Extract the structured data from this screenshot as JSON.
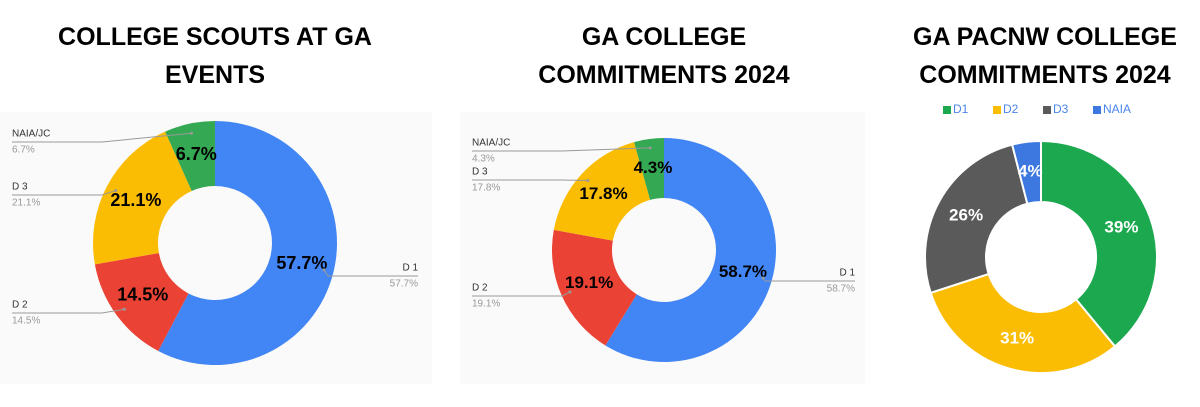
{
  "chart_data": [
    {
      "type": "donut",
      "title": "COLLEGE SCOUTS AT GA EVENTS",
      "categories": [
        "D 1",
        "D 2",
        "D 3",
        "NAIA/JC"
      ],
      "values": [
        57.7,
        14.5,
        21.1,
        6.7
      ],
      "value_labels": [
        "57.7%",
        "14.5%",
        "21.1%",
        "6.7%"
      ],
      "colors": [
        "#4285f4",
        "#ea4335",
        "#fbbc04",
        "#34a853"
      ]
    },
    {
      "type": "donut",
      "title": "GA COLLEGE COMMITMENTS 2024",
      "categories": [
        "D 1",
        "D 2",
        "D 3",
        "NAIA/JC"
      ],
      "values": [
        58.7,
        19.1,
        17.8,
        4.3
      ],
      "value_labels": [
        "58.7%",
        "19.1%",
        "17.8%",
        "4.3%"
      ],
      "colors": [
        "#4285f4",
        "#ea4335",
        "#fbbc04",
        "#34a853"
      ]
    },
    {
      "type": "donut",
      "title": "GA PACNW COLLEGE COMMITMENTS 2024",
      "categories": [
        "D1",
        "D2",
        "D3",
        "NAIA"
      ],
      "values": [
        39,
        31,
        26,
        4
      ],
      "value_labels": [
        "39%",
        "31%",
        "26%",
        "4%"
      ],
      "colors": [
        "#1ba84f",
        "#fbbc04",
        "#5a5a5a",
        "#3c78e0"
      ],
      "legend": "top"
    }
  ]
}
